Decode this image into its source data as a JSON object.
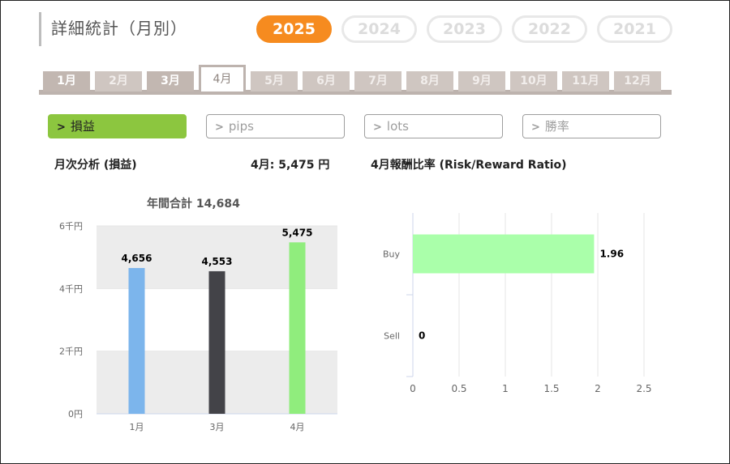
{
  "header": {
    "title": "詳細統計（月別）"
  },
  "years": [
    {
      "label": "2025",
      "active": true
    },
    {
      "label": "2024",
      "active": false
    },
    {
      "label": "2023",
      "active": false
    },
    {
      "label": "2022",
      "active": false
    },
    {
      "label": "2021",
      "active": false
    }
  ],
  "months": [
    {
      "label": "1月",
      "state": "normal"
    },
    {
      "label": "2月",
      "state": "dim"
    },
    {
      "label": "3月",
      "state": "normal"
    },
    {
      "label": "4月",
      "state": "active"
    },
    {
      "label": "5月",
      "state": "dim"
    },
    {
      "label": "6月",
      "state": "dim"
    },
    {
      "label": "7月",
      "state": "dim"
    },
    {
      "label": "8月",
      "state": "dim"
    },
    {
      "label": "9月",
      "state": "dim"
    },
    {
      "label": "10月",
      "state": "dim"
    },
    {
      "label": "11月",
      "state": "dim"
    },
    {
      "label": "12月",
      "state": "dim"
    }
  ],
  "filters": [
    {
      "label": "損益",
      "active": true
    },
    {
      "label": "pips",
      "active": false
    },
    {
      "label": "lots",
      "active": false
    },
    {
      "label": "勝率",
      "active": false
    }
  ],
  "captions": {
    "left": "月次分析 (損益)",
    "month_value": "4月:  5,475 円",
    "right": "4月報酬比率 (Risk/Reward Ratio)",
    "year_total": "年間合計 14,684"
  },
  "chart_data": [
    {
      "type": "bar",
      "categories": [
        "1月",
        "3月",
        "4月"
      ],
      "values": [
        4656,
        4553,
        5475
      ],
      "value_labels": [
        "4,656",
        "4,553",
        "5,475"
      ],
      "colors": [
        "#7cb5ec",
        "#434348",
        "#90ed7d"
      ],
      "ylim": [
        0,
        6000
      ],
      "yticks": [
        0,
        2000,
        4000,
        6000
      ],
      "ytick_labels": [
        "0円",
        "2千円",
        "4千円",
        "6千円"
      ],
      "grid": true
    },
    {
      "type": "bar",
      "orientation": "horizontal",
      "categories": [
        "Buy",
        "Sell"
      ],
      "values": [
        1.96,
        0
      ],
      "value_labels": [
        "1.96",
        "0"
      ],
      "color": "#aaffaa",
      "xlim": [
        0,
        2.5
      ],
      "xticks": [
        0,
        0.5,
        1,
        1.5,
        2,
        2.5
      ],
      "xtick_labels": [
        "0",
        "0.5",
        "1",
        "1.5",
        "2",
        "2.5"
      ],
      "grid": true
    }
  ]
}
